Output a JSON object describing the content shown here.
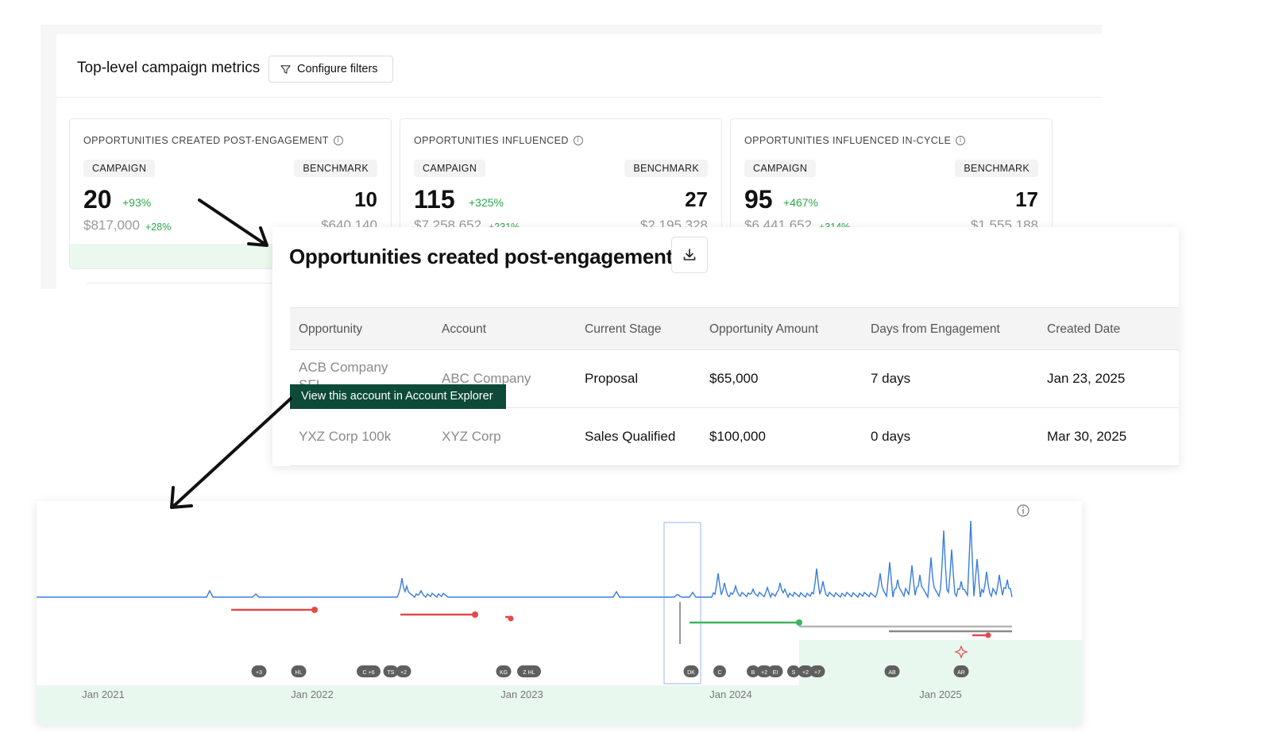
{
  "metrics": {
    "title": "Top-level campaign metrics",
    "filter_label": "Configure filters",
    "cards": [
      {
        "label": "OPPORTUNITIES CREATED POST-ENGAGEMENT",
        "campaign_label": "CAMPAIGN",
        "benchmark_label": "BENCHMARK",
        "campaign_value": "20",
        "campaign_delta": "+93%",
        "benchmark_value": "10",
        "campaign_amount": "$817,000",
        "amount_delta": "+28%",
        "benchmark_amount": "$640,140"
      },
      {
        "label": "OPPORTUNITIES INFLUENCED",
        "campaign_label": "CAMPAIGN",
        "benchmark_label": "BENCHMARK",
        "campaign_value": "115",
        "campaign_delta": "+325%",
        "benchmark_value": "27",
        "campaign_amount": "$7,258,652",
        "amount_delta": "+231%",
        "benchmark_amount": "$2,195,328"
      },
      {
        "label": "OPPORTUNITIES INFLUENCED IN-CYCLE",
        "campaign_label": "CAMPAIGN",
        "benchmark_label": "BENCHMARK",
        "campaign_value": "95",
        "campaign_delta": "+467%",
        "benchmark_value": "17",
        "campaign_amount": "$6,441,652",
        "amount_delta": "+314%",
        "benchmark_amount": "$1,555,188"
      }
    ]
  },
  "opportunities": {
    "title": "Opportunities created post-engagement",
    "columns": [
      "Opportunity",
      "Account",
      "Current Stage",
      "Opportunity Amount",
      "Days from Engagement",
      "Created Date"
    ],
    "rows": [
      {
        "opportunity": "ACB Company",
        "opportunity_tail": "SFL",
        "account": "ABC Company",
        "stage": "Proposal",
        "amount": "$65,000",
        "days": "7 days",
        "created": "Jan 23, 2025"
      },
      {
        "opportunity": "YXZ Corp 100k",
        "account": "XYZ Corp",
        "stage": "Sales Qualified",
        "amount": "$100,000",
        "days": "0 days",
        "created": "Mar 30, 2025"
      }
    ],
    "tooltip": "View this account in Account Explorer"
  },
  "timeline": {
    "x_ticks": [
      "Jan 2021",
      "Jan 2022",
      "Jan 2023",
      "Jan 2024",
      "Jan 2025"
    ],
    "markers": [
      "+3",
      "HL",
      "C +6",
      "TS",
      "+2",
      "KG",
      "Z HL",
      "DK",
      "C",
      "B",
      "+2",
      "EI",
      "S",
      "+2",
      "+7",
      "AB",
      "AR"
    ],
    "colors": {
      "activity": "#3b7ddd",
      "negative": "#e24a4a",
      "positive": "#3cb55e",
      "neutral": "#9a9a9a",
      "band": "#e9f8ee"
    }
  }
}
